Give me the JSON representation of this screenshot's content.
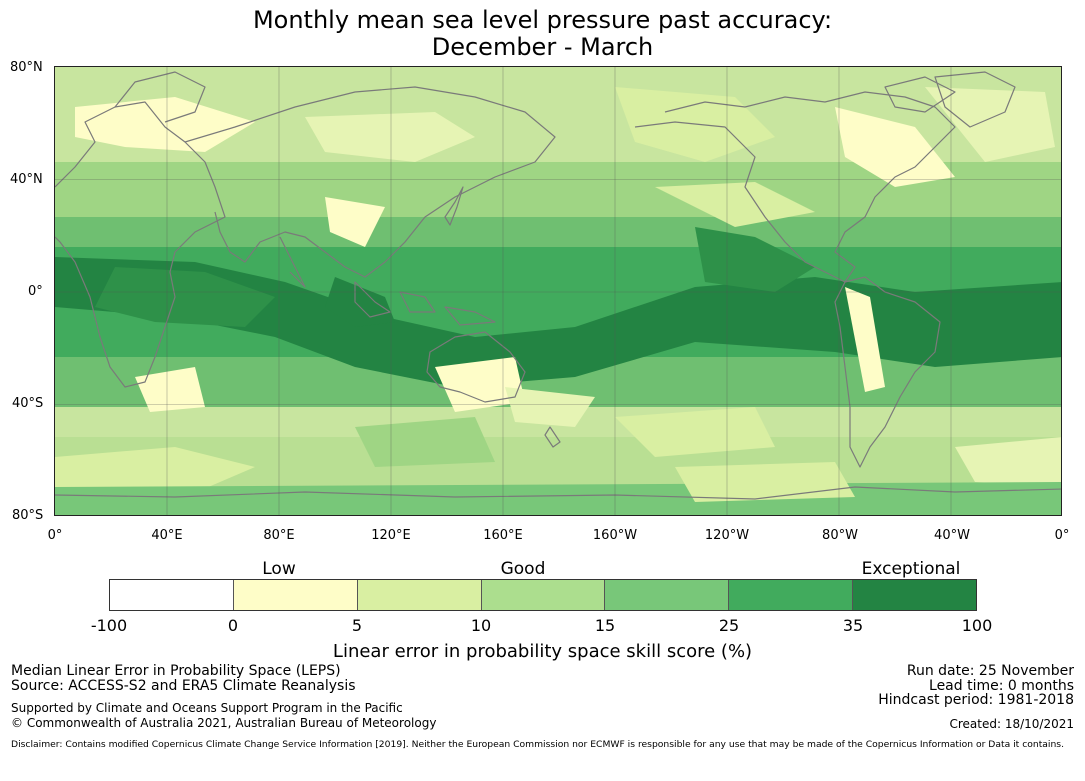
{
  "title": {
    "line1": "Monthly mean sea level pressure past accuracy:",
    "line2": "December - March"
  },
  "map": {
    "lat_labels": [
      "80°N",
      "40°N",
      "0°",
      "40°S",
      "80°S"
    ],
    "lon_labels": [
      "0°",
      "40°E",
      "80°E",
      "120°E",
      "160°E",
      "160°W",
      "120°W",
      "80°W",
      "40°W",
      "0°"
    ],
    "land_outline_color": "#7a7a7a",
    "gridline_color": "#555555"
  },
  "legend": {
    "categories": [
      "Low",
      "Good",
      "Exceptional"
    ],
    "colors": [
      "#ffffff",
      "#fefdc8",
      "#d9efa2",
      "#acde8e",
      "#78c779",
      "#41ab5d",
      "#238443"
    ],
    "ticks": [
      "-100",
      "0",
      "5",
      "10",
      "15",
      "25",
      "35",
      "100"
    ],
    "title": "Linear error in probability space skill score (%)"
  },
  "info": {
    "left": {
      "line1": "Median Linear Error in Probability Space (LEPS)",
      "line2": "Source: ACCESS-S2 and ERA5 Climate Reanalysis",
      "line3": "Supported by Climate and Oceans Support Program in the Pacific",
      "line4": "© Commonwealth of Australia 2021, Australian Bureau of Meteorology"
    },
    "right": {
      "run_date": "Run date: 25 November",
      "lead_time": "Lead time: 0 months",
      "hindcast": "Hindcast period: 1981-2018",
      "created": "Created: 18/10/2021"
    },
    "disclaimer": "Disclaimer: Contains modified Copernicus Climate Change Service Information [2019]. Neither the European Commission nor ECMWF is responsible for any use that may be made of the Copernicus Information or Data it contains."
  }
}
